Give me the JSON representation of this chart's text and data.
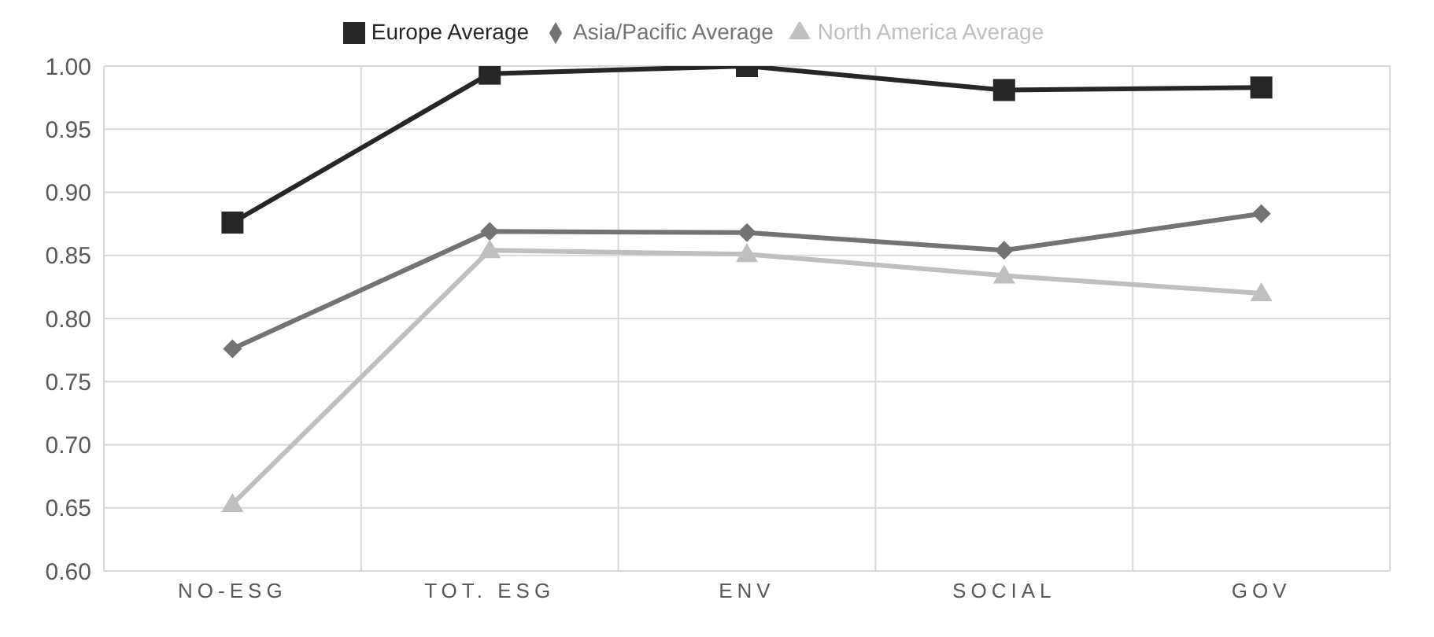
{
  "chart_data": {
    "type": "line",
    "categories": [
      "NO-ESG",
      "TOT. ESG",
      "ENV",
      "SOCIAL",
      "GOV"
    ],
    "series": [
      {
        "name": "Europe Average",
        "color": "#262626",
        "marker": "square",
        "values": [
          0.876,
          0.994,
          1.0,
          0.981,
          0.983
        ]
      },
      {
        "name": "Asia/Pacific Average",
        "color": "#737373",
        "marker": "diamond",
        "values": [
          0.776,
          0.869,
          0.868,
          0.854,
          0.883
        ]
      },
      {
        "name": "North America Average",
        "color": "#bfbfbf",
        "marker": "triangle",
        "values": [
          0.653,
          0.854,
          0.851,
          0.834,
          0.82
        ]
      }
    ],
    "ylim": [
      0.6,
      1.0
    ],
    "yticks": [
      {
        "value": 0.6,
        "label": "0.60"
      },
      0.65,
      {
        "value": 0.7,
        "label": "0.70"
      },
      0.75,
      {
        "value": 0.8,
        "label": "0.80"
      },
      0.85,
      {
        "value": 0.9,
        "label": "0.90"
      },
      0.95,
      {
        "value": 1.0,
        "label": "1.00"
      }
    ],
    "grid": true,
    "legend": "top",
    "line_style": "solid"
  }
}
